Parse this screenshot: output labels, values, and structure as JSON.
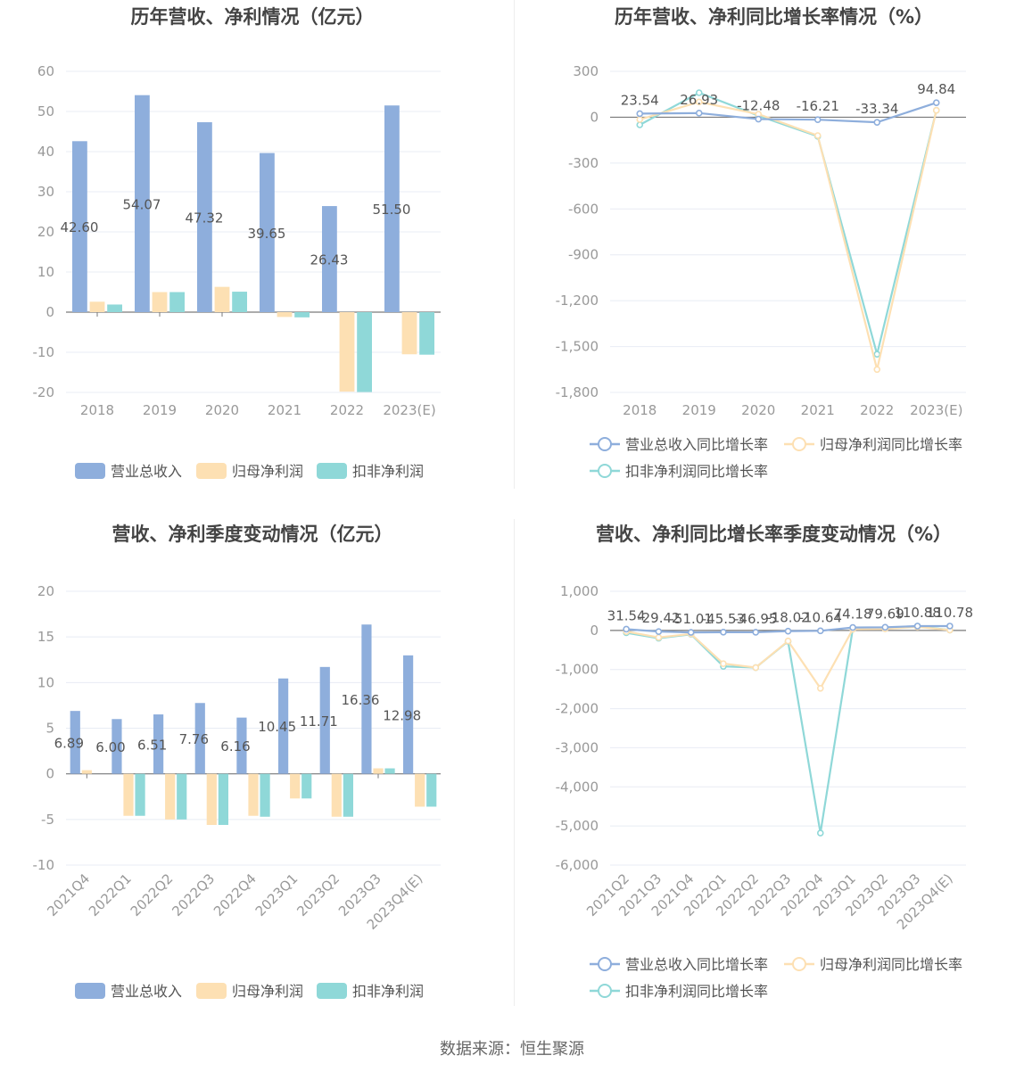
{
  "source": "数据来源：恒生聚源",
  "colors": {
    "revenue": "#8eaedc",
    "net_profit": "#fde0b3",
    "deducted_profit": "#8fd8d8",
    "grid": "#e8ecf4",
    "axis": "#7a7a7a",
    "label": "#999999",
    "title": "#444444",
    "value": "#555555"
  },
  "chart_data": [
    {
      "type": "bar",
      "title": "历年营收、净利情况（亿元）",
      "categories": [
        "2018",
        "2019",
        "2020",
        "2021",
        "2022",
        "2023(E)"
      ],
      "ylim": [
        -20,
        60
      ],
      "yticks": [
        -20,
        -10,
        0,
        10,
        20,
        30,
        40,
        50,
        60
      ],
      "ytick_labels": [
        "-20",
        "-10",
        "0",
        "10",
        "20",
        "30",
        "40",
        "50",
        "60"
      ],
      "label_series": 0,
      "value_labels": [
        "42.60",
        "54.07",
        "47.32",
        "39.65",
        "26.43",
        "51.50"
      ],
      "rotate_x": false,
      "series": [
        {
          "name": "营业总收入",
          "color": "revenue",
          "values": [
            42.6,
            54.07,
            47.32,
            39.65,
            26.43,
            51.5
          ]
        },
        {
          "name": "归母净利润",
          "color": "net_profit",
          "values": [
            2.6,
            5.0,
            6.3,
            -1.2,
            -19.8,
            -10.5
          ]
        },
        {
          "name": "扣非净利润",
          "color": "deducted_profit",
          "values": [
            1.9,
            5.0,
            5.1,
            -1.3,
            -19.9,
            -10.6
          ]
        }
      ]
    },
    {
      "type": "line",
      "title": "历年营收、净利同比增长率情况（%）",
      "categories": [
        "2018",
        "2019",
        "2020",
        "2021",
        "2022",
        "2023(E)"
      ],
      "ylim": [
        -1800,
        300
      ],
      "yticks": [
        -1800,
        -1500,
        -1200,
        -900,
        -600,
        -300,
        0,
        300
      ],
      "ytick_labels": [
        "-1,800",
        "-1,500",
        "-1,200",
        "-900",
        "-600",
        "-300",
        "0",
        "300"
      ],
      "label_series": 0,
      "value_labels": [
        "23.54",
        "26.93",
        "-12.48",
        "-16.21",
        "-33.34",
        "94.84"
      ],
      "rotate_x": false,
      "series": [
        {
          "name": "营业总收入同比增长率",
          "color": "revenue",
          "values": [
            23.54,
            26.93,
            -12.48,
            -16.21,
            -33.34,
            94.84
          ]
        },
        {
          "name": "归母净利润同比增长率",
          "color": "net_profit",
          "values": [
            -15,
            100,
            20,
            -120,
            -1650,
            45
          ]
        },
        {
          "name": "扣非净利润同比增长率",
          "color": "deducted_profit",
          "values": [
            -50,
            160,
            10,
            -125,
            -1550,
            45
          ]
        }
      ]
    },
    {
      "type": "bar",
      "title": "营收、净利季度变动情况（亿元）",
      "categories": [
        "2021Q4",
        "2022Q1",
        "2022Q2",
        "2022Q3",
        "2022Q4",
        "2023Q1",
        "2023Q2",
        "2023Q3",
        "2023Q4(E)"
      ],
      "ylim": [
        -10,
        20
      ],
      "yticks": [
        -10,
        -5,
        0,
        5,
        10,
        15,
        20
      ],
      "ytick_labels": [
        "-10",
        "-5",
        "0",
        "5",
        "10",
        "15",
        "20"
      ],
      "label_series": 0,
      "value_labels": [
        "6.89",
        "6.00",
        "6.51",
        "7.76",
        "6.16",
        "10.45",
        "11.71",
        "16.36",
        "12.98"
      ],
      "rotate_x": true,
      "series": [
        {
          "name": "营业总收入",
          "color": "revenue",
          "values": [
            6.89,
            6.0,
            6.51,
            7.76,
            6.16,
            10.45,
            11.71,
            16.36,
            12.98
          ]
        },
        {
          "name": "归母净利润",
          "color": "net_profit",
          "values": [
            0.4,
            -4.6,
            -5.0,
            -5.6,
            -4.6,
            -2.7,
            -4.7,
            0.6,
            -3.6
          ]
        },
        {
          "name": "扣非净利润",
          "color": "deducted_profit",
          "values": [
            0,
            -4.6,
            -5.0,
            -5.6,
            -4.7,
            -2.7,
            -4.7,
            0.6,
            -3.6
          ]
        }
      ]
    },
    {
      "type": "line",
      "title": "营收、净利同比增长率季度变动情况（%）",
      "categories": [
        "2021Q2",
        "2021Q3",
        "2021Q4",
        "2022Q1",
        "2022Q2",
        "2022Q3",
        "2022Q4",
        "2023Q1",
        "2023Q2",
        "2023Q3",
        "2023Q4(E)"
      ],
      "ylim": [
        -6000,
        1000
      ],
      "yticks": [
        -6000,
        -5000,
        -4000,
        -3000,
        -2000,
        -1000,
        0,
        1000
      ],
      "ytick_labels": [
        "-6,000",
        "-5,000",
        "-4,000",
        "-3,000",
        "-2,000",
        "-1,000",
        "0",
        "1,000"
      ],
      "label_series": 0,
      "value_labels": [
        "31.54",
        "-29.42",
        "-51.01",
        "-45.53",
        "-46.95",
        "-18.02",
        "-10.64",
        "74.18",
        "79.69",
        "110.88",
        "110.78"
      ],
      "rotate_x": true,
      "series": [
        {
          "name": "营业总收入同比增长率",
          "color": "revenue",
          "values": [
            31.54,
            -29.42,
            -51.01,
            -45.53,
            -46.95,
            -18.02,
            -10.64,
            74.18,
            79.69,
            110.88,
            110.78
          ]
        },
        {
          "name": "归母净利润同比增长率",
          "color": "net_profit",
          "values": [
            -30,
            -180,
            -90,
            -850,
            -950,
            -270,
            -1480,
            30,
            40,
            90,
            10
          ]
        },
        {
          "name": "扣非净利润同比增长率",
          "color": "deducted_profit",
          "values": [
            -60,
            -200,
            -100,
            -920,
            -950,
            -280,
            -5180,
            40,
            50,
            110,
            10
          ]
        }
      ]
    }
  ]
}
